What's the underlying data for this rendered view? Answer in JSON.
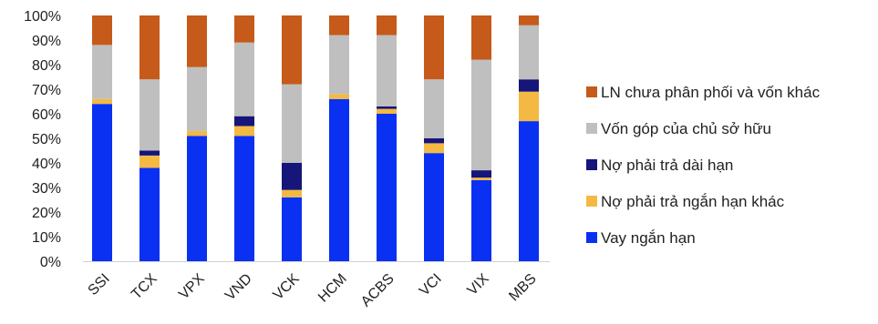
{
  "chart_data": {
    "type": "bar",
    "stacked": true,
    "title": "",
    "xlabel": "",
    "ylabel": "",
    "ylim": [
      0,
      100
    ],
    "y_tick_labels": [
      "0%",
      "10%",
      "20%",
      "30%",
      "40%",
      "50%",
      "60%",
      "70%",
      "80%",
      "90%",
      "100%"
    ],
    "categories": [
      "SSI",
      "TCX",
      "VPX",
      "VND",
      "VCK",
      "HCM",
      "ACBS",
      "VCI",
      "VIX",
      "MBS"
    ],
    "grid": false,
    "legend_position": "right",
    "series": [
      {
        "name": "Vay ngắn hạn",
        "color": "#0A30F2",
        "values": [
          64,
          38,
          51,
          51,
          26,
          66,
          60,
          44,
          33,
          57
        ]
      },
      {
        "name": "Nợ phải trả ngắn hạn khác",
        "color": "#F4B942",
        "values": [
          2,
          5,
          2,
          4,
          3,
          2,
          2,
          4,
          1,
          12
        ]
      },
      {
        "name": "Nợ phải trả dài hạn",
        "color": "#15157A",
        "values": [
          0,
          2,
          0,
          4,
          11,
          0,
          1,
          2,
          3,
          5
        ]
      },
      {
        "name": "Vốn góp của chủ sở hữu",
        "color": "#BFBFBF",
        "values": [
          22,
          29,
          26,
          30,
          32,
          24,
          29,
          24,
          45,
          22
        ]
      },
      {
        "name": "LN chưa phân phối và vốn khác",
        "color": "#C55A1A",
        "values": [
          12,
          26,
          21,
          11,
          28,
          8,
          8,
          26,
          18,
          4
        ]
      }
    ],
    "legend_order": [
      "LN chưa phân phối và vốn khác",
      "Vốn góp của chủ sở hữu",
      "Nợ phải trả dài hạn",
      "Nợ phải trả ngắn hạn khác",
      "Vay ngắn hạn"
    ]
  }
}
